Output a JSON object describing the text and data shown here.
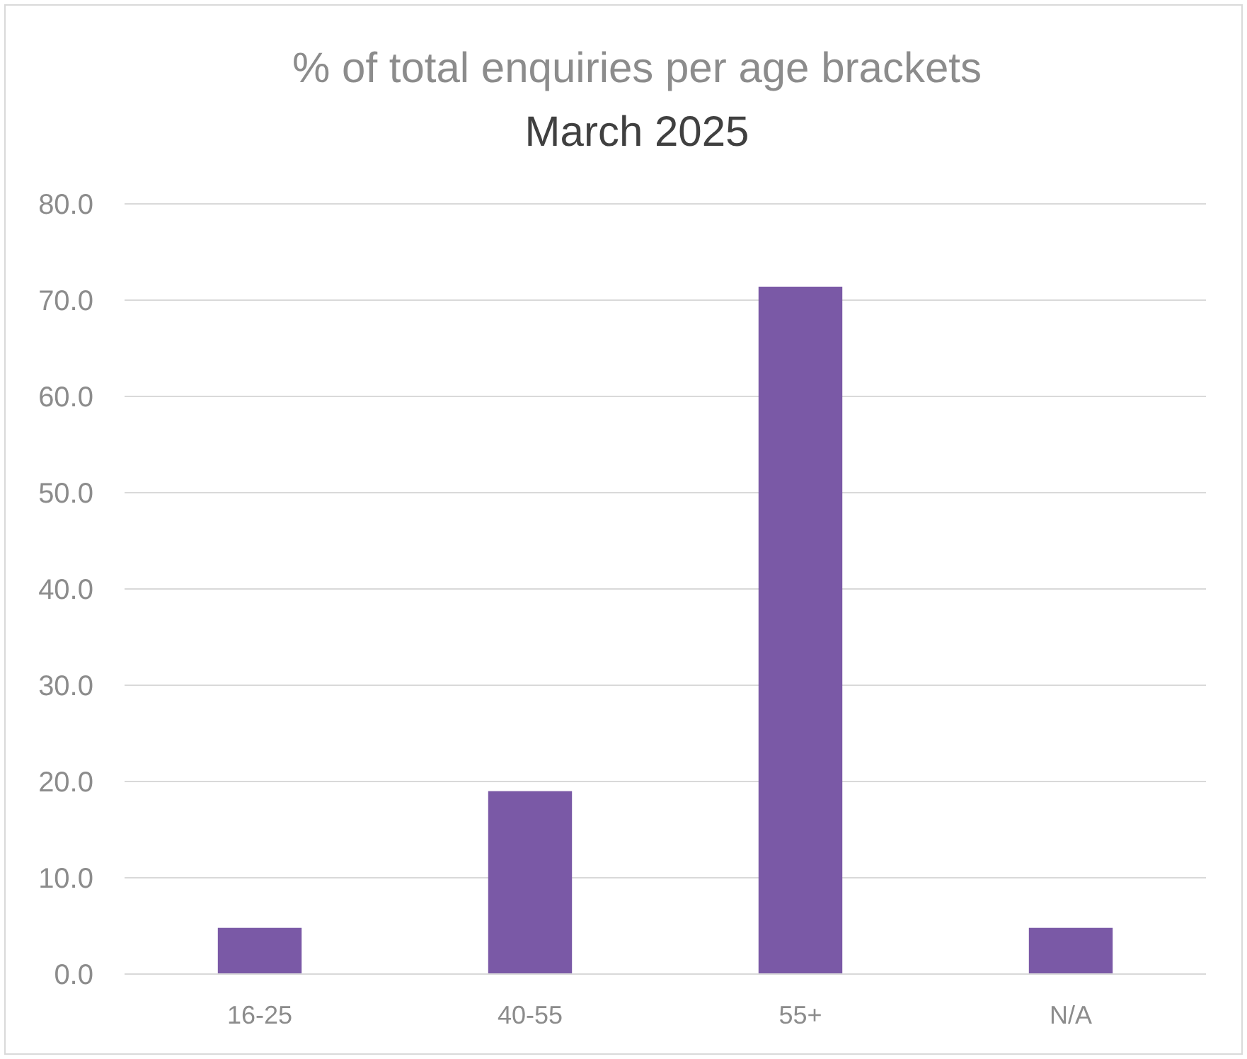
{
  "chart_data": {
    "type": "bar",
    "title": "% of total enquiries per age brackets",
    "subtitle": "March 2025",
    "categories": [
      "16-25",
      "40-55",
      "55+",
      "N/A"
    ],
    "values": [
      4.8,
      19.0,
      71.4,
      4.8
    ],
    "color": "#7a59a6",
    "ylim": [
      0,
      80
    ],
    "yticks": [
      {
        "value": 0,
        "label": "0.0"
      },
      {
        "value": 10,
        "label": "10.0"
      },
      {
        "value": 20,
        "label": "20.0"
      },
      {
        "value": 30,
        "label": "30.0"
      },
      {
        "value": 40,
        "label": "40.0"
      },
      {
        "value": 50,
        "label": "50.0"
      },
      {
        "value": 60,
        "label": "60.0"
      },
      {
        "value": 70,
        "label": "70.0"
      },
      {
        "value": 80,
        "label": "80.0"
      }
    ],
    "grid": "y"
  }
}
